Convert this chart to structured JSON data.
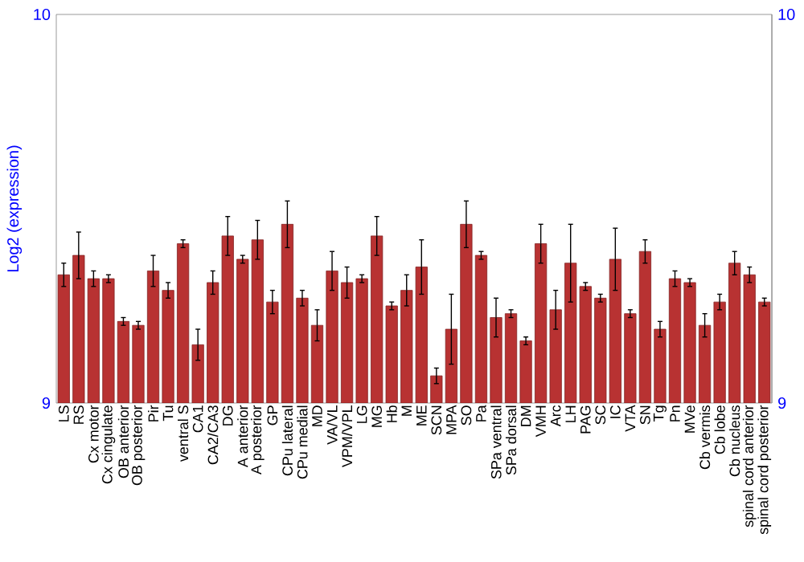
{
  "chart_data": {
    "type": "bar",
    "ylabel": "Log2 (expression)",
    "categories": [
      "LS",
      "RS",
      "Cx motor",
      "Cx cingulate",
      "OB anterior",
      "OB posterior",
      "Pir",
      "Tu",
      "ventral S",
      "CA1",
      "CA2/CA3",
      "DG",
      "A anterior",
      "A posterior",
      "GP",
      "CPu lateral",
      "CPu medial",
      "MD",
      "VA/VL",
      "VPM/VPL",
      "LG",
      "MG",
      "Hb",
      "M",
      "ME",
      "SCN",
      "MPA",
      "SO",
      "Pa",
      "SPa ventral",
      "SPa dorsal",
      "DM",
      "VMH",
      "Arc",
      "LH",
      "PAG",
      "SC",
      "IC",
      "VTA",
      "SN",
      "Tg",
      "Pn",
      "MVe",
      "Cb vermis",
      "Cb lobe",
      "Cb nucleus",
      "spinal cord anterior",
      "spinal cord posterior"
    ],
    "values": [
      9.33,
      9.38,
      9.32,
      9.32,
      9.21,
      9.2,
      9.34,
      9.29,
      9.41,
      9.15,
      9.31,
      9.43,
      9.37,
      9.42,
      9.26,
      9.46,
      9.27,
      9.2,
      9.34,
      9.31,
      9.32,
      9.43,
      9.25,
      9.29,
      9.35,
      9.07,
      9.19,
      9.46,
      9.38,
      9.22,
      9.23,
      9.16,
      9.41,
      9.24,
      9.36,
      9.3,
      9.27,
      9.37,
      9.23,
      9.39,
      9.19,
      9.32,
      9.31,
      9.2,
      9.26,
      9.36,
      9.33,
      9.26
    ],
    "errors": [
      0.03,
      0.06,
      0.02,
      0.01,
      0.01,
      0.01,
      0.04,
      0.02,
      0.01,
      0.04,
      0.03,
      0.05,
      0.01,
      0.05,
      0.03,
      0.06,
      0.02,
      0.04,
      0.05,
      0.04,
      0.01,
      0.05,
      0.01,
      0.04,
      0.07,
      0.02,
      0.09,
      0.06,
      0.01,
      0.05,
      0.01,
      0.01,
      0.05,
      0.05,
      0.1,
      0.01,
      0.01,
      0.08,
      0.01,
      0.03,
      0.02,
      0.02,
      0.01,
      0.03,
      0.02,
      0.03,
      0.02,
      0.01
    ],
    "color": "#b83232",
    "ylim": [
      9,
      10
    ],
    "yticks": [
      9,
      10
    ],
    "y2lim": [
      9,
      10
    ],
    "y2ticks": [
      9,
      10
    ],
    "grid": false
  }
}
